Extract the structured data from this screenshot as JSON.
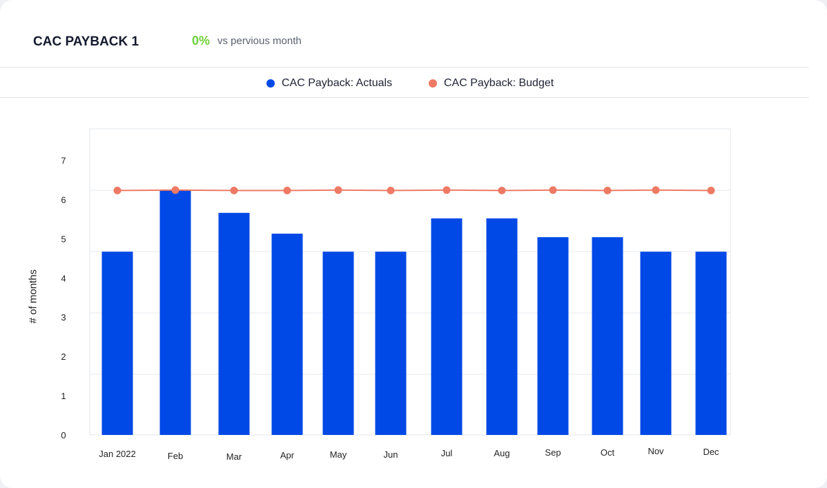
{
  "header": {
    "title": "CAC PAYBACK 1",
    "delta": "0%",
    "delta_text": "vs pervious month"
  },
  "colors": {
    "actuals": "#0049e6",
    "budget": "#ee7a65",
    "delta": "#6fcf3c"
  },
  "chart_data": {
    "type": "bar",
    "ylabel": "# of months",
    "categories": [
      "Jan 2022",
      "Feb",
      "Mar",
      "Apr",
      "May",
      "Jun",
      "Jul",
      "Aug",
      "Sep",
      "Oct",
      "Nov",
      "Dec"
    ],
    "yticks": [
      0,
      1,
      2,
      3,
      4,
      5,
      6,
      7
    ],
    "ylim": [
      0,
      7.8
    ],
    "legend_position": "top-center",
    "series": [
      {
        "name": "CAC Payback: Actuals",
        "type": "bar",
        "values": [
          4.67,
          6.24,
          5.66,
          5.13,
          4.67,
          4.67,
          5.52,
          5.52,
          5.04,
          5.04,
          4.67,
          4.67
        ]
      },
      {
        "name": "CAC Payback: Budget",
        "type": "line",
        "values": [
          6.23,
          6.24,
          6.23,
          6.23,
          6.24,
          6.23,
          6.24,
          6.23,
          6.24,
          6.23,
          6.24,
          6.23
        ]
      }
    ]
  }
}
